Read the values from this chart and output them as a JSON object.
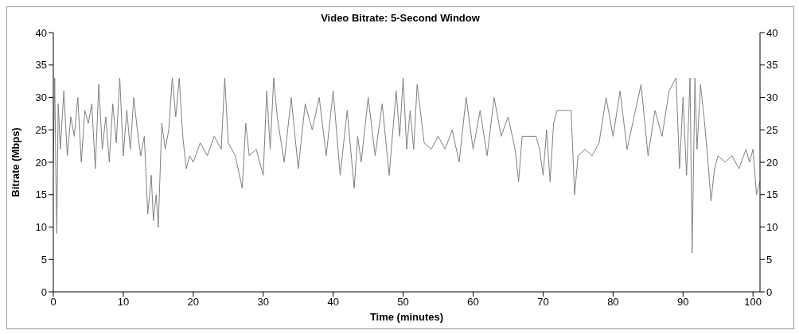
{
  "chart_data": {
    "type": "line",
    "title": "Video Bitrate: 5-Second Window",
    "xlabel": "Time (minutes)",
    "ylabel": "Bitrate (Mbps)",
    "xlim": [
      0,
      101
    ],
    "xticks": [
      0,
      10,
      20,
      30,
      40,
      50,
      60,
      70,
      80,
      90,
      100
    ],
    "ylim": [
      0,
      40
    ],
    "yticks": [
      0,
      5,
      10,
      15,
      20,
      25,
      30,
      35,
      40
    ],
    "y2lim": [
      0,
      40
    ],
    "y2ticks": [
      0,
      5,
      10,
      15,
      20,
      25,
      30,
      35,
      40
    ],
    "marker": "none",
    "line_style": "solid",
    "series": [
      {
        "color": "#808080",
        "x": [
          0,
          0.2,
          0.4,
          0.5,
          0.7,
          1,
          1.5,
          2,
          2.5,
          3,
          3.5,
          4,
          4.5,
          5,
          5.5,
          6,
          6.5,
          7,
          7.5,
          8,
          8.5,
          9,
          9.5,
          10,
          10.5,
          11,
          11.5,
          12,
          12.5,
          13,
          13.5,
          14,
          14.3,
          14.7,
          15,
          15.5,
          16,
          16.5,
          17,
          17.5,
          18,
          18.5,
          19,
          19.5,
          20,
          21,
          22,
          23,
          24,
          24.5,
          25,
          26,
          27,
          27.5,
          28,
          29,
          30,
          30.5,
          31,
          31.5,
          32,
          33,
          34,
          35,
          36,
          37,
          38,
          39,
          40,
          41,
          42,
          43,
          43.5,
          44,
          45,
          46,
          47,
          48,
          49,
          49.5,
          50,
          50.5,
          51,
          51.5,
          52,
          53,
          54,
          55,
          56,
          57,
          58,
          59,
          60,
          61,
          62,
          63,
          64,
          65,
          66,
          66.5,
          67,
          67.5,
          68,
          69,
          69.5,
          70,
          70.5,
          71,
          71.5,
          72,
          73,
          74,
          74.5,
          75,
          76,
          77,
          78,
          79,
          80,
          81,
          82,
          83,
          84,
          85,
          86,
          87,
          88,
          89,
          89.5,
          90,
          90.5,
          91,
          91.3,
          91.7,
          92,
          92.5,
          93,
          93.5,
          94,
          94.5,
          95,
          96,
          97,
          98,
          99,
          99.5,
          100,
          100.5,
          101
        ],
        "values": [
          20,
          33,
          15,
          9,
          29,
          22,
          31,
          21,
          27,
          24,
          30,
          20,
          28,
          26,
          29,
          19,
          32,
          22,
          27,
          20,
          29,
          23,
          33,
          21,
          28,
          22,
          30,
          25,
          21,
          24,
          12,
          18,
          11,
          15,
          10,
          26,
          22,
          25,
          33,
          27,
          33,
          24,
          19,
          21,
          20,
          23,
          21,
          24,
          22,
          33,
          23,
          21,
          16,
          26,
          21,
          22,
          18,
          31,
          22,
          33,
          27,
          20,
          30,
          19,
          29,
          25,
          30,
          21,
          31,
          18,
          28,
          16,
          24,
          20,
          30,
          21,
          29,
          18,
          31,
          24,
          33,
          22,
          28,
          22,
          32,
          23,
          22,
          24,
          22,
          25,
          20,
          30,
          22,
          28,
          21,
          30,
          24,
          27,
          22,
          17,
          24,
          24,
          24,
          24,
          22,
          18,
          25,
          17,
          26,
          28,
          28,
          28,
          15,
          21,
          22,
          21,
          23,
          30,
          24,
          31,
          22,
          27,
          32,
          21,
          28,
          24,
          31,
          33,
          19,
          30,
          18,
          33,
          6,
          33,
          22,
          32,
          27,
          21,
          14,
          19,
          21,
          20,
          21,
          19,
          22,
          20,
          22,
          15,
          17
        ]
      }
    ]
  }
}
